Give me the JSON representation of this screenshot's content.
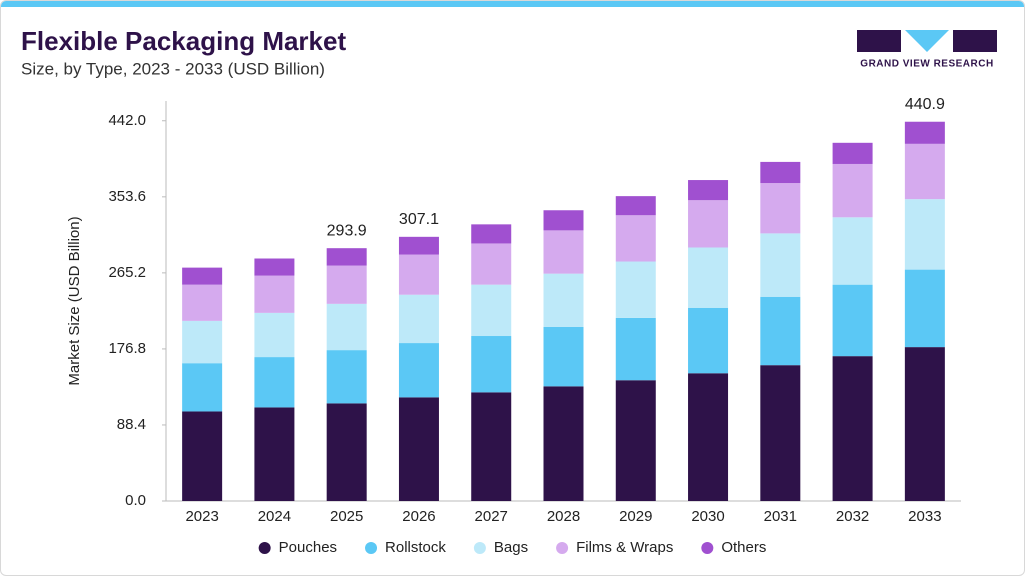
{
  "header": {
    "title": "Flexible Packaging Market",
    "subtitle": "Size, by Type, 2023 - 2033 (USD Billion)",
    "logo_text": "GRAND VIEW RESEARCH"
  },
  "chart_data": {
    "type": "stacked_bar",
    "y_label": "Market Size (USD Billion)",
    "categories": [
      "2023",
      "2024",
      "2025",
      "2026",
      "2027",
      "2028",
      "2029",
      "2030",
      "2031",
      "2032",
      "2033"
    ],
    "series": [
      {
        "name": "Pouches",
        "color": "#2e1249",
        "values": [
          104.1,
          108.8,
          113.5,
          120.5,
          126.3,
          133.3,
          140.4,
          148.5,
          157.9,
          168.4,
          178.9
        ]
      },
      {
        "name": "Rollstock",
        "color": "#5bc8f5",
        "values": [
          56.1,
          58.5,
          61.9,
          63.1,
          65.5,
          69.0,
          72.5,
          76.1,
          79.5,
          83.1,
          90.1
        ]
      },
      {
        "name": "Bags",
        "color": "#bde9f9",
        "values": [
          49.2,
          51.4,
          53.8,
          56.2,
          59.7,
          62.0,
          65.5,
          70.1,
          73.7,
          78.3,
          81.9
        ]
      },
      {
        "name": "Films & Wraps",
        "color": "#d5aaee",
        "values": [
          42.1,
          43.3,
          44.5,
          46.7,
          47.9,
          50.3,
          53.8,
          55.0,
          58.5,
          62.0,
          64.3
        ]
      },
      {
        "name": "Others",
        "color": "#a050d0",
        "values": [
          19.8,
          19.9,
          20.2,
          20.6,
          22.2,
          23.4,
          22.2,
          23.4,
          24.6,
          24.6,
          25.7
        ]
      }
    ],
    "annotations": [
      {
        "category": "2025",
        "value": 293.9
      },
      {
        "category": "2026",
        "value": 307.1
      },
      {
        "category": "2033",
        "value": 440.9
      }
    ],
    "ylim": [
      0,
      465
    ],
    "yticks": [
      {
        "value": 0,
        "label": "0.0"
      },
      88.4,
      176.8,
      265.2,
      353.6,
      {
        "value": 442,
        "label": "442.0"
      }
    ],
    "grid": false
  }
}
